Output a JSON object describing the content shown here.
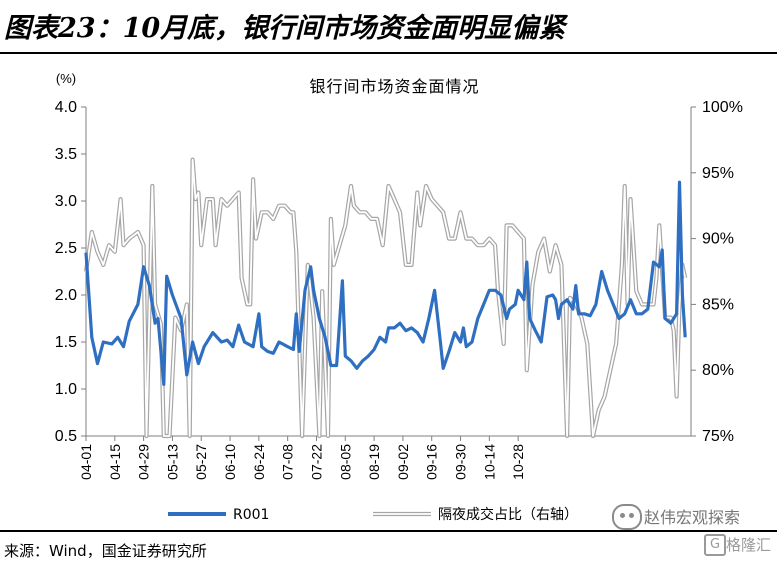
{
  "header": {
    "title": "图表23：10月底，银行间市场资金面明显偏紧"
  },
  "chart_data": {
    "type": "line",
    "title": "银行间市场资金面情况",
    "left_unit": "(%)",
    "left_ylim": [
      0.5,
      4.0
    ],
    "left_ticks": [
      "0.5",
      "1.0",
      "1.5",
      "2.0",
      "2.5",
      "3.0",
      "3.5",
      "4.0"
    ],
    "right_ylim": [
      75,
      100
    ],
    "right_ticks": [
      "75%",
      "80%",
      "85%",
      "90%",
      "95%",
      "100%"
    ],
    "x_ticks": [
      "04-01",
      "04-15",
      "04-29",
      "05-13",
      "05-27",
      "06-10",
      "06-24",
      "07-08",
      "07-22",
      "08-05",
      "08-19",
      "09-02",
      "09-16",
      "09-30",
      "10-14",
      "10-28"
    ],
    "legend_position": "bottom",
    "series": [
      {
        "name": "R001",
        "axis": "left",
        "color": "#2e6fc2",
        "points": [
          [
            0,
            2.45
          ],
          [
            2,
            1.55
          ],
          [
            4,
            1.27
          ],
          [
            6,
            1.5
          ],
          [
            9,
            1.48
          ],
          [
            11,
            1.55
          ],
          [
            13,
            1.45
          ],
          [
            15,
            1.72
          ],
          [
            18,
            1.9
          ],
          [
            20,
            2.3
          ],
          [
            22,
            2.1
          ],
          [
            24,
            1.7
          ],
          [
            25,
            1.75
          ],
          [
            27,
            1.05
          ],
          [
            28,
            2.2
          ],
          [
            30,
            2.0
          ],
          [
            33,
            1.75
          ],
          [
            35,
            1.15
          ],
          [
            37,
            1.5
          ],
          [
            39,
            1.27
          ],
          [
            41,
            1.45
          ],
          [
            44,
            1.6
          ],
          [
            47,
            1.5
          ],
          [
            49,
            1.52
          ],
          [
            51,
            1.45
          ],
          [
            53,
            1.68
          ],
          [
            55,
            1.5
          ],
          [
            58,
            1.45
          ],
          [
            60,
            1.8
          ],
          [
            61,
            1.45
          ],
          [
            63,
            1.4
          ],
          [
            65,
            1.38
          ],
          [
            67,
            1.5
          ],
          [
            70,
            1.45
          ],
          [
            72,
            1.42
          ],
          [
            73,
            1.8
          ],
          [
            74,
            1.4
          ],
          [
            76,
            2.05
          ],
          [
            78,
            2.3
          ],
          [
            79,
            2.05
          ],
          [
            81,
            1.75
          ],
          [
            83,
            1.55
          ],
          [
            85,
            1.25
          ],
          [
            87,
            1.25
          ],
          [
            89,
            2.15
          ],
          [
            90,
            1.35
          ],
          [
            92,
            1.3
          ],
          [
            94,
            1.22
          ],
          [
            96,
            1.3
          ],
          [
            98,
            1.35
          ],
          [
            100,
            1.42
          ],
          [
            102,
            1.55
          ],
          [
            104,
            1.5
          ],
          [
            105,
            1.65
          ],
          [
            107,
            1.65
          ],
          [
            109,
            1.7
          ],
          [
            111,
            1.62
          ],
          [
            113,
            1.65
          ],
          [
            115,
            1.6
          ],
          [
            117,
            1.5
          ],
          [
            119,
            1.75
          ],
          [
            121,
            2.05
          ],
          [
            123,
            1.5
          ],
          [
            124,
            1.22
          ],
          [
            126,
            1.4
          ],
          [
            128,
            1.6
          ],
          [
            130,
            1.5
          ],
          [
            131,
            1.65
          ],
          [
            132,
            1.45
          ],
          [
            134,
            1.5
          ],
          [
            136,
            1.75
          ],
          [
            138,
            1.9
          ],
          [
            140,
            2.05
          ],
          [
            142,
            2.05
          ],
          [
            144,
            2.0
          ],
          [
            146,
            1.75
          ],
          [
            147,
            1.85
          ],
          [
            149,
            1.9
          ],
          [
            150,
            2.05
          ],
          [
            152,
            1.95
          ],
          [
            153,
            2.35
          ],
          [
            154,
            1.75
          ],
          [
            156,
            1.62
          ],
          [
            158,
            1.5
          ],
          [
            160,
            1.98
          ],
          [
            162,
            2.0
          ],
          [
            163,
            1.95
          ],
          [
            164,
            1.75
          ],
          [
            165,
            1.9
          ],
          [
            167,
            1.95
          ],
          [
            169,
            1.85
          ],
          [
            170,
            2.1
          ],
          [
            171,
            1.8
          ],
          [
            173,
            1.8
          ],
          [
            175,
            1.78
          ],
          [
            177,
            1.9
          ],
          [
            179,
            2.25
          ],
          [
            181,
            2.05
          ],
          [
            183,
            1.9
          ],
          [
            185,
            1.75
          ],
          [
            187,
            1.8
          ],
          [
            189,
            1.95
          ],
          [
            191,
            1.8
          ],
          [
            193,
            1.8
          ],
          [
            195,
            1.85
          ],
          [
            197,
            2.35
          ],
          [
            199,
            2.3
          ],
          [
            200,
            2.48
          ],
          [
            201,
            1.75
          ],
          [
            203,
            1.7
          ],
          [
            205,
            1.8
          ],
          [
            206,
            3.2
          ],
          [
            207,
            2.0
          ],
          [
            208,
            1.55
          ]
        ]
      },
      {
        "name": "隔夜成交占比（右轴）",
        "axis": "right",
        "color": "#b8b8b8",
        "points": [
          [
            0,
            87.5
          ],
          [
            2,
            90.5
          ],
          [
            4,
            89
          ],
          [
            6,
            88
          ],
          [
            8,
            89.5
          ],
          [
            10,
            89
          ],
          [
            12,
            93
          ],
          [
            13,
            89.5
          ],
          [
            15,
            90
          ],
          [
            18,
            90.5
          ],
          [
            20,
            89.5
          ],
          [
            21,
            75
          ],
          [
            23,
            94
          ],
          [
            24,
            85
          ],
          [
            26,
            83.5
          ],
          [
            27,
            75
          ],
          [
            29,
            75
          ],
          [
            31,
            84
          ],
          [
            33,
            83
          ],
          [
            35,
            85
          ],
          [
            36,
            75
          ],
          [
            37,
            96
          ],
          [
            38,
            93
          ],
          [
            39,
            93.5
          ],
          [
            40,
            89.5
          ],
          [
            42,
            93
          ],
          [
            44,
            93
          ],
          [
            45,
            89.5
          ],
          [
            47,
            93
          ],
          [
            49,
            92.5
          ],
          [
            51,
            93
          ],
          [
            53,
            93.5
          ],
          [
            54,
            87
          ],
          [
            56,
            85
          ],
          [
            57,
            85
          ],
          [
            58,
            94.5
          ],
          [
            59,
            90
          ],
          [
            61,
            92
          ],
          [
            63,
            92
          ],
          [
            65,
            91.5
          ],
          [
            67,
            92.5
          ],
          [
            69,
            92.5
          ],
          [
            71,
            92
          ],
          [
            72,
            92
          ],
          [
            73,
            89
          ],
          [
            75,
            75
          ],
          [
            77,
            88
          ],
          [
            79,
            84
          ],
          [
            81,
            75
          ],
          [
            82,
            86
          ],
          [
            84,
            75
          ],
          [
            85,
            91.5
          ],
          [
            86,
            88
          ],
          [
            88,
            89.5
          ],
          [
            90,
            91
          ],
          [
            92,
            94
          ],
          [
            93,
            92.5
          ],
          [
            95,
            92
          ],
          [
            97,
            92
          ],
          [
            99,
            91.5
          ],
          [
            101,
            91.5
          ],
          [
            103,
            89.5
          ],
          [
            105,
            94
          ],
          [
            107,
            93
          ],
          [
            109,
            92
          ],
          [
            111,
            88
          ],
          [
            113,
            88
          ],
          [
            115,
            93.5
          ],
          [
            116,
            91
          ],
          [
            118,
            94
          ],
          [
            120,
            93
          ],
          [
            122,
            92.5
          ],
          [
            124,
            92
          ],
          [
            126,
            90
          ],
          [
            128,
            90
          ],
          [
            130,
            92
          ],
          [
            132,
            90
          ],
          [
            134,
            90
          ],
          [
            136,
            89.5
          ],
          [
            138,
            89.5
          ],
          [
            140,
            90
          ],
          [
            142,
            89.5
          ],
          [
            143,
            86
          ],
          [
            145,
            82
          ],
          [
            146,
            91
          ],
          [
            148,
            91
          ],
          [
            150,
            90.5
          ],
          [
            152,
            90
          ],
          [
            153,
            80
          ],
          [
            155,
            86.5
          ],
          [
            157,
            89
          ],
          [
            159,
            90
          ],
          [
            161,
            87.5
          ],
          [
            163,
            89.5
          ],
          [
            165,
            88
          ],
          [
            167,
            75
          ],
          [
            168,
            85.5
          ],
          [
            170,
            85
          ],
          [
            172,
            84
          ],
          [
            174,
            82
          ],
          [
            176,
            75
          ],
          [
            178,
            77
          ],
          [
            180,
            78
          ],
          [
            182,
            80
          ],
          [
            184,
            82
          ],
          [
            186,
            88
          ],
          [
            187,
            94
          ],
          [
            188,
            85
          ],
          [
            189,
            93
          ],
          [
            191,
            86
          ],
          [
            193,
            85
          ],
          [
            195,
            85
          ],
          [
            197,
            85
          ],
          [
            198,
            87
          ],
          [
            199,
            91
          ],
          [
            201,
            84
          ],
          [
            203,
            84
          ],
          [
            204,
            83
          ],
          [
            205,
            78
          ],
          [
            206,
            85
          ],
          [
            207,
            88
          ],
          [
            208,
            87
          ]
        ]
      }
    ]
  },
  "footer": {
    "source": "来源：Wind，国金证券研究所"
  },
  "watermark": {
    "account": "赵伟宏观探索",
    "brand": "格隆汇",
    "icon": "wechat-icon"
  }
}
